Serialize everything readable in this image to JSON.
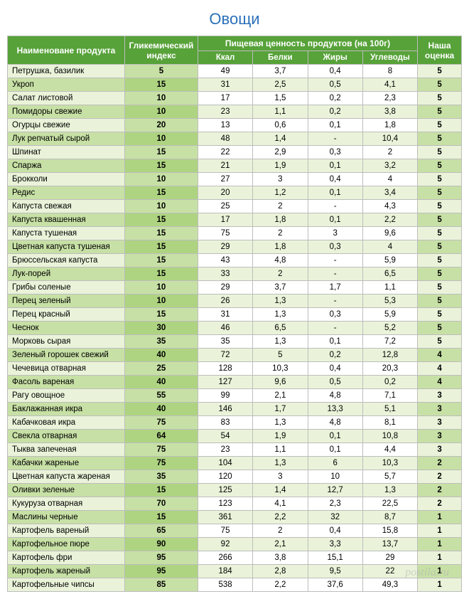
{
  "title": "Овощи",
  "colors": {
    "title": "#2a70b8",
    "header_bg": "#57a239",
    "header_fg": "#ffffff",
    "border": "#bdbdbd",
    "stripe_lightest": "#ffffff",
    "stripe_light": "#eaf3d9",
    "stripe_mid": "#c7e0a5",
    "stripe_dark": "#aed481"
  },
  "header": {
    "name": "Наименоване продукта",
    "gi": "Гликемический индекс",
    "nutri_group": "Пищевая ценность продуктов (на 100г)",
    "kcal": "Ккал",
    "protein": "Белки",
    "fat": "Жиры",
    "carbs": "Углеводы",
    "rating": "Наша оценка"
  },
  "rows": [
    {
      "name": "Петрушка, базилик",
      "gi": "5",
      "kcal": "49",
      "protein": "3,7",
      "fat": "0,4",
      "carbs": "8",
      "rating": "5"
    },
    {
      "name": "Укроп",
      "gi": "15",
      "kcal": "31",
      "protein": "2,5",
      "fat": "0,5",
      "carbs": "4,1",
      "rating": "5"
    },
    {
      "name": "Салат листовой",
      "gi": "10",
      "kcal": "17",
      "protein": "1,5",
      "fat": "0,2",
      "carbs": "2,3",
      "rating": "5"
    },
    {
      "name": "Помидоры свежие",
      "gi": "10",
      "kcal": "23",
      "protein": "1,1",
      "fat": "0,2",
      "carbs": "3,8",
      "rating": "5"
    },
    {
      "name": "Огурцы свежие",
      "gi": "20",
      "kcal": "13",
      "protein": "0,6",
      "fat": "0,1",
      "carbs": "1,8",
      "rating": "5"
    },
    {
      "name": "Лук репчатый сырой",
      "gi": "10",
      "kcal": "48",
      "protein": "1,4",
      "fat": "-",
      "carbs": "10,4",
      "rating": "5"
    },
    {
      "name": "Шпинат",
      "gi": "15",
      "kcal": "22",
      "protein": "2,9",
      "fat": "0,3",
      "carbs": "2",
      "rating": "5"
    },
    {
      "name": "Спаржа",
      "gi": "15",
      "kcal": "21",
      "protein": "1,9",
      "fat": "0,1",
      "carbs": "3,2",
      "rating": "5"
    },
    {
      "name": "Брокколи",
      "gi": "10",
      "kcal": "27",
      "protein": "3",
      "fat": "0,4",
      "carbs": "4",
      "rating": "5"
    },
    {
      "name": "Редис",
      "gi": "15",
      "kcal": "20",
      "protein": "1,2",
      "fat": "0,1",
      "carbs": "3,4",
      "rating": "5"
    },
    {
      "name": "Капуста свежая",
      "gi": "10",
      "kcal": "25",
      "protein": "2",
      "fat": "-",
      "carbs": "4,3",
      "rating": "5"
    },
    {
      "name": "Капуста квашенная",
      "gi": "15",
      "kcal": "17",
      "protein": "1,8",
      "fat": "0,1",
      "carbs": "2,2",
      "rating": "5"
    },
    {
      "name": "Капуста тушеная",
      "gi": "15",
      "kcal": "75",
      "protein": "2",
      "fat": "3",
      "carbs": "9,6",
      "rating": "5"
    },
    {
      "name": "Цветная капуста тушеная",
      "gi": "15",
      "kcal": "29",
      "protein": "1,8",
      "fat": "0,3",
      "carbs": "4",
      "rating": "5"
    },
    {
      "name": "Брюссельская капуста",
      "gi": "15",
      "kcal": "43",
      "protein": "4,8",
      "fat": "-",
      "carbs": "5,9",
      "rating": "5"
    },
    {
      "name": "Лук-порей",
      "gi": "15",
      "kcal": "33",
      "protein": "2",
      "fat": "-",
      "carbs": "6,5",
      "rating": "5"
    },
    {
      "name": "Грибы соленые",
      "gi": "10",
      "kcal": "29",
      "protein": "3,7",
      "fat": "1,7",
      "carbs": "1,1",
      "rating": "5"
    },
    {
      "name": "Перец зеленый",
      "gi": "10",
      "kcal": "26",
      "protein": "1,3",
      "fat": "-",
      "carbs": "5,3",
      "rating": "5"
    },
    {
      "name": "Перец красный",
      "gi": "15",
      "kcal": "31",
      "protein": "1,3",
      "fat": "0,3",
      "carbs": "5,9",
      "rating": "5"
    },
    {
      "name": "Чеснок",
      "gi": "30",
      "kcal": "46",
      "protein": "6,5",
      "fat": "-",
      "carbs": "5,2",
      "rating": "5"
    },
    {
      "name": "Морковь сырая",
      "gi": "35",
      "kcal": "35",
      "protein": "1,3",
      "fat": "0,1",
      "carbs": "7,2",
      "rating": "5"
    },
    {
      "name": "Зеленый горошек свежий",
      "gi": "40",
      "kcal": "72",
      "protein": "5",
      "fat": "0,2",
      "carbs": "12,8",
      "rating": "4"
    },
    {
      "name": "Чечевица отварная",
      "gi": "25",
      "kcal": "128",
      "protein": "10,3",
      "fat": "0,4",
      "carbs": "20,3",
      "rating": "4"
    },
    {
      "name": "Фасоль вареная",
      "gi": "40",
      "kcal": "127",
      "protein": "9,6",
      "fat": "0,5",
      "carbs": "0,2",
      "rating": "4"
    },
    {
      "name": "Рагу овощное",
      "gi": "55",
      "kcal": "99",
      "protein": "2,1",
      "fat": "4,8",
      "carbs": "7,1",
      "rating": "3"
    },
    {
      "name": "Баклажанная икра",
      "gi": "40",
      "kcal": "146",
      "protein": "1,7",
      "fat": "13,3",
      "carbs": "5,1",
      "rating": "3"
    },
    {
      "name": "Кабачковая икра",
      "gi": "75",
      "kcal": "83",
      "protein": "1,3",
      "fat": "4,8",
      "carbs": "8,1",
      "rating": "3"
    },
    {
      "name": "Свекла отварная",
      "gi": "64",
      "kcal": "54",
      "protein": "1,9",
      "fat": "0,1",
      "carbs": "10,8",
      "rating": "3"
    },
    {
      "name": "Тыква запеченая",
      "gi": "75",
      "kcal": "23",
      "protein": "1,1",
      "fat": "0,1",
      "carbs": "4,4",
      "rating": "3"
    },
    {
      "name": "Кабачки жареные",
      "gi": "75",
      "kcal": "104",
      "protein": "1,3",
      "fat": "6",
      "carbs": "10,3",
      "rating": "2"
    },
    {
      "name": "Цветная капуста жареная",
      "gi": "35",
      "kcal": "120",
      "protein": "3",
      "fat": "10",
      "carbs": "5,7",
      "rating": "2"
    },
    {
      "name": "Оливки зеленые",
      "gi": "15",
      "kcal": "125",
      "protein": "1,4",
      "fat": "12,7",
      "carbs": "1,3",
      "rating": "2"
    },
    {
      "name": "Кукуруза отварная",
      "gi": "70",
      "kcal": "123",
      "protein": "4,1",
      "fat": "2,3",
      "carbs": "22,5",
      "rating": "2"
    },
    {
      "name": "Маслины черные",
      "gi": "15",
      "kcal": "361",
      "protein": "2,2",
      "fat": "32",
      "carbs": "8,7",
      "rating": "1"
    },
    {
      "name": "Картофель вареный",
      "gi": "65",
      "kcal": "75",
      "protein": "2",
      "fat": "0,4",
      "carbs": "15,8",
      "rating": "1"
    },
    {
      "name": "Картофельное пюре",
      "gi": "90",
      "kcal": "92",
      "protein": "2,1",
      "fat": "3,3",
      "carbs": "13,7",
      "rating": "1"
    },
    {
      "name": "Картофель фри",
      "gi": "95",
      "kcal": "266",
      "protein": "3,8",
      "fat": "15,1",
      "carbs": "29",
      "rating": "1"
    },
    {
      "name": "Картофель жареный",
      "gi": "95",
      "kcal": "184",
      "protein": "2,8",
      "fat": "9,5",
      "carbs": "22",
      "rating": "1"
    },
    {
      "name": "Картофельные чипсы",
      "gi": "85",
      "kcal": "538",
      "protein": "2,2",
      "fat": "37,6",
      "carbs": "49,3",
      "rating": "1"
    }
  ],
  "watermark": "postila.ru"
}
